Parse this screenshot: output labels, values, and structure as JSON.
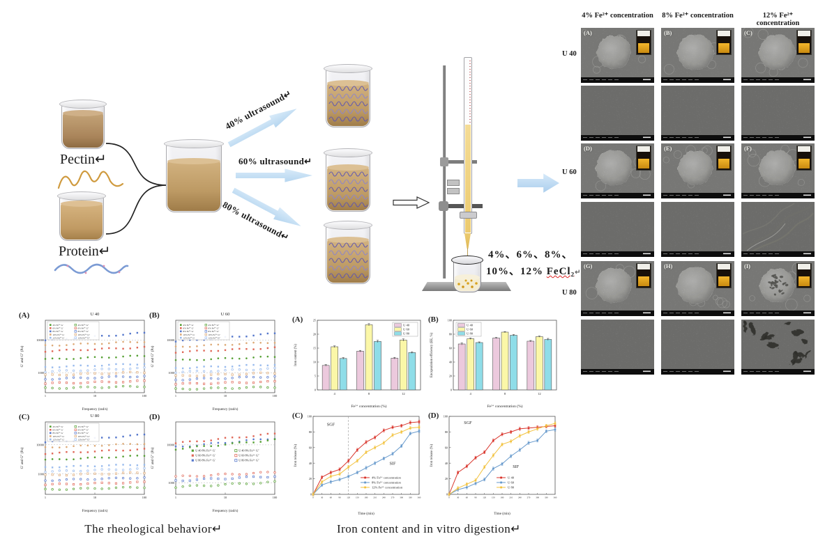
{
  "diagram": {
    "pectin": "Pectin↵",
    "protein": "Protein↵",
    "ultrasound": [
      "40% ultrasound↵",
      "60% ultrasound↵",
      "80% ultrasound↵"
    ],
    "fecl_line1": "4%、6%、8%、",
    "fecl_line2_pre": "10%、12% ",
    "fecl_chem": "FeCl₂",
    "fecl_return": "↵"
  },
  "sem": {
    "col_headers": [
      "4% Fe²⁺ concentration",
      "8% Fe²⁺ concentration",
      "12% Fe²⁺ concentration"
    ],
    "row_labels": [
      "U 40",
      "U 60",
      "U 80"
    ],
    "bead_labels": [
      [
        "(A)",
        "(B)",
        "(C)"
      ],
      [
        "(D)",
        "(E)",
        "(F)"
      ],
      [
        "(G)",
        "(H)",
        "(I)"
      ]
    ]
  },
  "captions": {
    "left": "The rheological behavior↵",
    "right": "Iron content and in vitro digestion↵"
  },
  "chart_data": [
    {
      "id": "rheoA",
      "type": "scatter",
      "panel": "(A)",
      "title": "U 40",
      "xlabel": "Frequency (rad/s)",
      "ylabel": "G′ and G″ (Pa)",
      "xlim": [
        1,
        100
      ],
      "ylim": [
        250,
        40000
      ],
      "xticks": [
        1,
        10,
        100
      ],
      "yticks": [
        1000,
        10000
      ],
      "legend": {
        "pos": "top-left",
        "colors": [
          "#55a033",
          "#e06858",
          "#5577cc",
          "#ddaa77",
          "#99bbee"
        ],
        "left": [
          "4% Fe²⁺ G′",
          "6% Fe²⁺ G′",
          "8% Fe²⁺ G′",
          "10% Fe²⁺ G′",
          "12% Fe²⁺ G′"
        ],
        "right": [
          "4% Fe²⁺ G″",
          "6% Fe²⁺ G″",
          "8% Fe²⁺ G″",
          "10% Fe²⁺ G″",
          "12% Fe²⁺ G″"
        ]
      },
      "series": [
        {
          "name": "8% Fe²⁺ G′",
          "color": "#5577cc",
          "open": false,
          "range": [
            9800,
            16500
          ]
        },
        {
          "name": "10% Fe²⁺ G′",
          "color": "#ddaa77",
          "open": false,
          "range": [
            6800,
            9000
          ]
        },
        {
          "name": "6% Fe²⁺ G′",
          "color": "#e06858",
          "open": false,
          "range": [
            4600,
            6000
          ]
        },
        {
          "name": "4% Fe²⁺ G′",
          "color": "#55a033",
          "open": false,
          "range": [
            2600,
            3300
          ]
        },
        {
          "name": "12% Fe²⁺ G′",
          "color": "#99bbee",
          "open": false,
          "range": [
            1500,
            1900
          ]
        },
        {
          "name": "12% Fe²⁺ G″",
          "color": "#99bbee",
          "open": true,
          "range": [
            1100,
            1400
          ]
        },
        {
          "name": "10% Fe²⁺ G″",
          "color": "#ddaa77",
          "open": true,
          "range": [
            850,
            1050
          ]
        },
        {
          "name": "8% Fe²⁺ G″",
          "color": "#5577cc",
          "open": true,
          "range": [
            650,
            800
          ]
        },
        {
          "name": "6% Fe²⁺ G″",
          "color": "#e06858",
          "open": true,
          "range": [
            480,
            560
          ]
        },
        {
          "name": "4% Fe²⁺ G″",
          "color": "#55a033",
          "open": true,
          "range": [
            340,
            390
          ]
        }
      ]
    },
    {
      "id": "rheoB",
      "type": "scatter",
      "panel": "(B)",
      "title": "U 60",
      "xlabel": "Frequency (rad/s)",
      "ylabel": "G′ and G″ (Pa)",
      "xlim": [
        1,
        100
      ],
      "ylim": [
        250,
        40000
      ],
      "xticks": [
        1,
        10,
        100
      ],
      "yticks": [
        1000,
        10000
      ],
      "legend": {
        "pos": "top-left",
        "colors": [
          "#55a033",
          "#e06858",
          "#5577cc",
          "#ddaa77",
          "#99bbee"
        ],
        "left": [
          "4% Fe²⁺ G′",
          "6% Fe²⁺ G′",
          "8% Fe²⁺ G′",
          "10% Fe²⁺ G′",
          "12% Fe²⁺ G′"
        ],
        "right": [
          "4% Fe²⁺ G″",
          "6% Fe²⁺ G″",
          "8% Fe²⁺ G″",
          "10% Fe²⁺ G″",
          "12% Fe²⁺ G″"
        ]
      },
      "series": [
        {
          "name": "8% Fe²⁺ G′",
          "color": "#5577cc",
          "open": false,
          "range": [
            9000,
            15800
          ]
        },
        {
          "name": "10% Fe²⁺ G′",
          "color": "#ddaa77",
          "open": false,
          "range": [
            6200,
            8600
          ]
        },
        {
          "name": "6% Fe²⁺ G′",
          "color": "#e06858",
          "open": false,
          "range": [
            4300,
            5800
          ]
        },
        {
          "name": "4% Fe²⁺ G′",
          "color": "#55a033",
          "open": false,
          "range": [
            2400,
            3100
          ]
        },
        {
          "name": "12% Fe²⁺ G′",
          "color": "#99bbee",
          "open": false,
          "range": [
            1400,
            1800
          ]
        },
        {
          "name": "12% Fe²⁺ G″",
          "color": "#99bbee",
          "open": true,
          "range": [
            1050,
            1350
          ]
        },
        {
          "name": "10% Fe²⁺ G″",
          "color": "#ddaa77",
          "open": true,
          "range": [
            800,
            1000
          ]
        },
        {
          "name": "8% Fe²⁺ G″",
          "color": "#5577cc",
          "open": true,
          "range": [
            620,
            780
          ]
        },
        {
          "name": "6% Fe²⁺ G″",
          "color": "#e06858",
          "open": true,
          "range": [
            460,
            540
          ]
        },
        {
          "name": "4% Fe²⁺ G″",
          "color": "#55a033",
          "open": true,
          "range": [
            320,
            370
          ]
        }
      ]
    },
    {
      "id": "rheoC",
      "type": "scatter",
      "panel": "(C)",
      "title": "U 80",
      "xlabel": "Frequency (rad/s)",
      "ylabel": "G′ and G″ (Pa)",
      "xlim": [
        1,
        100
      ],
      "ylim": [
        200,
        60000
      ],
      "xticks": [
        1,
        10,
        100
      ],
      "yticks": [
        1000,
        10000
      ],
      "legend": {
        "pos": "top-left",
        "colors": [
          "#55a033",
          "#e06858",
          "#5577cc",
          "#ddaa77",
          "#99bbee"
        ],
        "left": [
          "4% Fe²⁺ G′",
          "6% Fe²⁺ G′",
          "8% Fe²⁺ G′",
          "10% Fe²⁺ G′",
          "12% Fe²⁺ G′"
        ],
        "right": [
          "4% Fe²⁺ G″",
          "6% Fe²⁺ G″",
          "8% Fe²⁺ G″",
          "10% Fe²⁺ G″",
          "12% Fe²⁺ G″"
        ]
      },
      "series": [
        {
          "name": "8% Fe²⁺ G′",
          "color": "#5577cc",
          "open": false,
          "range": [
            12000,
            22000
          ]
        },
        {
          "name": "10% Fe²⁺ G′",
          "color": "#ddaa77",
          "open": false,
          "range": [
            8000,
            11000
          ]
        },
        {
          "name": "6% Fe²⁺ G′",
          "color": "#e06858",
          "open": false,
          "range": [
            5000,
            7000
          ]
        },
        {
          "name": "4% Fe²⁺ G′",
          "color": "#55a033",
          "open": false,
          "range": [
            3000,
            4200
          ]
        },
        {
          "name": "12% Fe²⁺ G′",
          "color": "#99bbee",
          "open": false,
          "range": [
            1700,
            2100
          ]
        },
        {
          "name": "12% Fe²⁺ G″",
          "color": "#99bbee",
          "open": true,
          "range": [
            1200,
            1500
          ]
        },
        {
          "name": "10% Fe²⁺ G″",
          "color": "#ddaa77",
          "open": true,
          "range": [
            900,
            1100
          ]
        },
        {
          "name": "8% Fe²⁺ G″",
          "color": "#5577cc",
          "open": true,
          "range": [
            600,
            750
          ]
        },
        {
          "name": "6% Fe²⁺ G″",
          "color": "#e06858",
          "open": true,
          "range": [
            430,
            520
          ]
        },
        {
          "name": "4% Fe²⁺ G″",
          "color": "#55a033",
          "open": true,
          "range": [
            290,
            350
          ]
        }
      ]
    },
    {
      "id": "rheoD",
      "type": "scatter",
      "panel": "(D)",
      "title": "",
      "xlabel": "Frequency (rad/s)",
      "ylabel": "G′ and G″ (Pa)",
      "xlim": [
        1,
        100
      ],
      "ylim": [
        500,
        40000
      ],
      "xticks": [
        1,
        10,
        100
      ],
      "yticks": [
        1000,
        10000
      ],
      "legend": {
        "pos": "center",
        "colors": [
          "#55a033",
          "#e06858",
          "#5577cc"
        ],
        "left": [
          "U 40 8% Fe²⁺ G′",
          "U 60 8% Fe²⁺ G′",
          "U 80 8% Fe²⁺ G′"
        ],
        "right": [
          "U 40 8% Fe²⁺ G″",
          "U 60 8% Fe²⁺ G″",
          "U 80 8% Fe²⁺ G″"
        ]
      },
      "series": [
        {
          "name": "U 60 8% Fe²⁺ G′",
          "color": "#e06858",
          "open": false,
          "range": [
            11000,
            19500
          ]
        },
        {
          "name": "U 80 8% Fe²⁺ G′",
          "color": "#5577cc",
          "open": false,
          "range": [
            8800,
            15000
          ]
        },
        {
          "name": "U 40 8% Fe²⁺ G′",
          "color": "#55a033",
          "open": false,
          "range": [
            7800,
            13500
          ]
        },
        {
          "name": "U 60 8% Fe²⁺ G″",
          "color": "#e06858",
          "open": true,
          "range": [
            1450,
            1900
          ]
        },
        {
          "name": "U 80 8% Fe²⁺ G″",
          "color": "#5577cc",
          "open": true,
          "range": [
            1150,
            1500
          ]
        },
        {
          "name": "U 40 8% Fe²⁺ G″",
          "color": "#55a033",
          "open": true,
          "range": [
            780,
            1050
          ]
        }
      ]
    },
    {
      "id": "barA",
      "type": "bar",
      "panel": "(A)",
      "categories": [
        "4",
        "8",
        "12"
      ],
      "xlabel": "Fe²⁺ concentration (%)",
      "ylabel": "Iron content (%)",
      "ylim": [
        0,
        25
      ],
      "yticks": [
        0,
        5,
        10,
        15,
        20,
        25
      ],
      "legend": {
        "pos": "top-right",
        "border": true
      },
      "series": [
        {
          "name": "U 40",
          "color": "#ecc9dd",
          "values": [
            8.8,
            13.9,
            11.4
          ],
          "err": [
            0.3,
            0.3,
            0.3
          ]
        },
        {
          "name": "U 60",
          "color": "#fbf7a8",
          "values": [
            15.5,
            23.4,
            17.9
          ],
          "err": [
            0.3,
            0.4,
            0.4
          ]
        },
        {
          "name": "U 80",
          "color": "#8fdde8",
          "values": [
            11.3,
            17.4,
            13.4
          ],
          "err": [
            0.3,
            0.4,
            0.3
          ]
        }
      ]
    },
    {
      "id": "barB",
      "type": "bar",
      "panel": "(B)",
      "categories": [
        "4",
        "8",
        "12"
      ],
      "xlabel": "Fe²⁺ concentration (%)",
      "ylabel": "Encapsulation efficiency (EE, %)",
      "ylim": [
        0,
        100
      ],
      "yticks": [
        0,
        20,
        40,
        60,
        80,
        100
      ],
      "legend": {
        "pos": "top-left",
        "border": true
      },
      "series": [
        {
          "name": "U 40",
          "color": "#ecc9dd",
          "values": [
            66,
            74.5,
            70
          ],
          "err": [
            1.5,
            0.8,
            1
          ]
        },
        {
          "name": "U 60",
          "color": "#fbf7a8",
          "values": [
            73.5,
            83,
            76.5
          ],
          "err": [
            1,
            0.8,
            0.8
          ]
        },
        {
          "name": "U 80",
          "color": "#8fdde8",
          "values": [
            68,
            78.5,
            72.5
          ],
          "err": [
            1,
            1,
            1.5
          ]
        }
      ]
    },
    {
      "id": "lineC",
      "type": "line",
      "panel": "(C)",
      "xlabel": "Time (min)",
      "ylabel": "Iron release (%)",
      "xlim": [
        0,
        360
      ],
      "xtick_step": 30,
      "ylim": [
        0,
        100
      ],
      "ytick_step": 20,
      "vline": 120,
      "annotations": [
        {
          "text": "SGF",
          "fx": 0.13,
          "fy": 0.12
        },
        {
          "text": "SIF",
          "fx": 0.72,
          "fy": 0.62
        }
      ],
      "legend": {
        "pos": "bottom-right"
      },
      "x": [
        0,
        30,
        60,
        90,
        120,
        150,
        180,
        210,
        240,
        270,
        300,
        330,
        360
      ],
      "series": [
        {
          "name": "4% Fe²⁺ concentration",
          "color": "#d9342b",
          "values": [
            0,
            22,
            28,
            32,
            43,
            57,
            67,
            73,
            82,
            86,
            88,
            92,
            93
          ]
        },
        {
          "name": "8% Fe²⁺ concentration",
          "color": "#6699cc",
          "values": [
            0,
            12,
            16,
            19,
            23,
            28,
            34,
            40,
            46,
            52,
            62,
            78,
            81
          ]
        },
        {
          "name": "12% Fe²⁺ concentration",
          "color": "#f2c23e",
          "values": [
            0,
            16,
            23,
            26,
            35,
            43,
            54,
            60,
            66,
            76,
            80,
            85,
            86
          ]
        }
      ]
    },
    {
      "id": "lineD",
      "type": "line",
      "panel": "(D)",
      "xlabel": "Time (min)",
      "ylabel": "Iron release (%)",
      "xlim": [
        0,
        360
      ],
      "xtick_step": 30,
      "ylim": [
        0,
        100
      ],
      "ytick_step": 20,
      "vline": null,
      "annotations": [
        {
          "text": "SGF",
          "fx": 0.14,
          "fy": 0.1
        },
        {
          "text": "SIF",
          "fx": 0.6,
          "fy": 0.66
        }
      ],
      "legend": {
        "pos": "bottom-right"
      },
      "x": [
        0,
        30,
        60,
        90,
        120,
        150,
        180,
        210,
        240,
        270,
        300,
        330,
        360
      ],
      "series": [
        {
          "name": "U 40",
          "color": "#d9342b",
          "values": [
            0,
            28,
            36,
            47,
            54,
            69,
            77,
            80,
            84,
            85,
            86,
            87,
            88
          ]
        },
        {
          "name": "U 60",
          "color": "#6699cc",
          "values": [
            0,
            6,
            9,
            14,
            19,
            33,
            39,
            49,
            57,
            66,
            69,
            81,
            83
          ]
        },
        {
          "name": "U 80",
          "color": "#f2c23e",
          "values": [
            0,
            8,
            13,
            18,
            35,
            50,
            64,
            68,
            75,
            80,
            84,
            88,
            91
          ]
        }
      ]
    }
  ]
}
